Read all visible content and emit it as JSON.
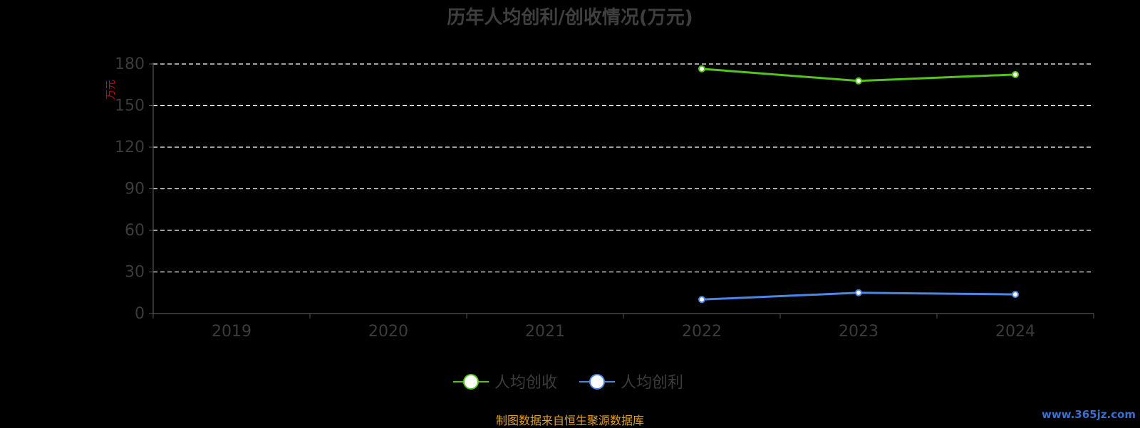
{
  "chart_data": {
    "type": "line",
    "title": "历年人均创利/创收情况(万元)",
    "ylabel": "万元",
    "xlabel": "",
    "categories": [
      "2019",
      "2020",
      "2021",
      "2022",
      "2023",
      "2024"
    ],
    "ylim": [
      0,
      180
    ],
    "yticks": [
      0,
      30,
      60,
      90,
      120,
      150,
      180
    ],
    "grid": true,
    "legend_position": "bottom",
    "series": [
      {
        "name": "人均创收",
        "color": "#52c41a",
        "values": [
          null,
          null,
          null,
          176.5,
          167.8,
          172.4
        ]
      },
      {
        "name": "人均创利",
        "color": "#4a86e8",
        "values": [
          null,
          null,
          null,
          10.1,
          15.0,
          13.8
        ]
      }
    ]
  },
  "footer": {
    "source": "制图数据来自恒生聚源数据库",
    "watermark": "www.365jz.com"
  }
}
